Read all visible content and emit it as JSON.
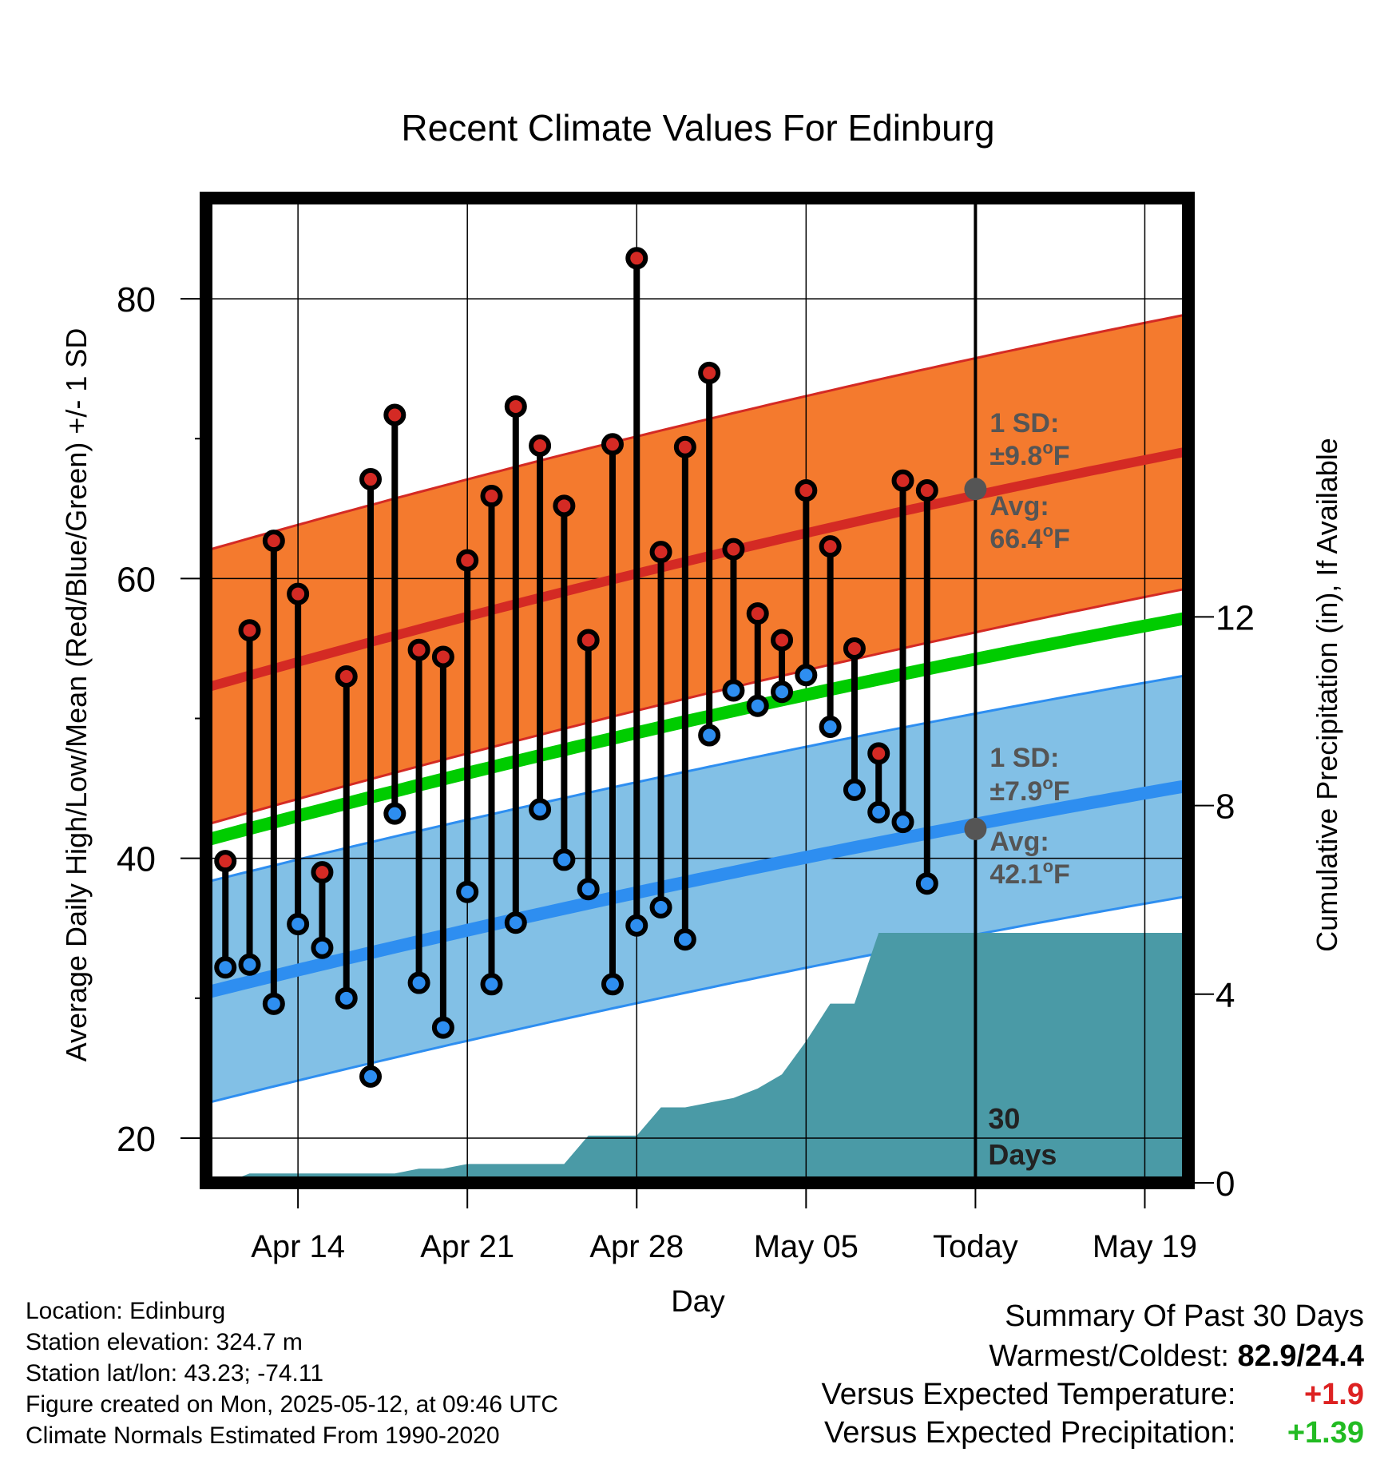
{
  "chart_data": {
    "type": "line",
    "title": "Recent Climate Values For Edinburg",
    "xlabel": "Day",
    "ylabel_left": "Average Daily High/Low/Mean (Red/Blue/Green) +/- 1 SD",
    "ylabel_right": "Cumulative Precipitation (in), If Available",
    "x_ticks": [
      "Apr 14",
      "Apr 21",
      "Apr 28",
      "May 05",
      "Today",
      "May 19"
    ],
    "x_tick_days": [
      3,
      10,
      17,
      24,
      31,
      38
    ],
    "xlim": [
      -0.8,
      39.8
    ],
    "ylim_left": [
      16.8,
      87.2
    ],
    "y_ticks_left": [
      20,
      40,
      60,
      80
    ],
    "y_minor_left": [
      30,
      50,
      70
    ],
    "ylim_right": [
      0,
      20.88
    ],
    "y_ticks_right": [
      0,
      4,
      8,
      12
    ],
    "days": [
      0,
      1,
      2,
      3,
      4,
      5,
      6,
      7,
      8,
      9,
      10,
      11,
      12,
      13,
      14,
      15,
      16,
      17,
      18,
      19,
      20,
      21,
      22,
      23,
      24,
      25,
      26,
      27,
      28,
      29,
      30
    ],
    "highs": [
      39.8,
      56.3,
      62.7,
      58.9,
      39.0,
      53.0,
      67.1,
      71.7,
      54.9,
      54.4,
      61.3,
      65.9,
      72.3,
      69.5,
      65.2,
      55.6,
      69.6,
      82.9,
      61.9,
      69.4,
      74.7,
      62.1,
      57.5,
      55.6,
      66.3,
      62.3,
      55.0,
      47.5,
      67.0,
      66.3
    ],
    "lows": [
      32.2,
      32.4,
      29.6,
      35.3,
      33.6,
      30.0,
      24.4,
      43.2,
      31.1,
      27.9,
      37.6,
      31.0,
      35.4,
      43.5,
      39.9,
      37.8,
      31.0,
      35.2,
      36.5,
      34.2,
      48.8,
      52.0,
      50.9,
      51.9,
      53.1,
      49.4,
      44.9,
      43.3,
      42.6,
      38.2
    ],
    "normal_high": {
      "start": 52.2,
      "end": 69.1,
      "today": 66.4,
      "sd": 9.8
    },
    "normal_low": {
      "start": 30.4,
      "end": 45.2,
      "today": 42.1,
      "sd": 7.9
    },
    "normal_mean": {
      "start": 41.3,
      "end": 57.2
    },
    "precip_cumulative": [
      0.0,
      0.2,
      0.2,
      0.2,
      0.2,
      0.2,
      0.2,
      0.2,
      0.3,
      0.3,
      0.4,
      0.4,
      0.4,
      0.4,
      0.4,
      1.0,
      1.0,
      1.0,
      1.6,
      1.6,
      1.7,
      1.8,
      2.0,
      2.3,
      3.0,
      3.8,
      3.8,
      5.3,
      5.3,
      5.3,
      5.3,
      5.3,
      5.3,
      5.3,
      5.3,
      5.3,
      5.3,
      5.3,
      5.3,
      5.3,
      5.3
    ],
    "today_day": 31,
    "annotations": {
      "high_sd": "1 SD:",
      "high_sd_val": "±9.8°F",
      "high_avg": "Avg:",
      "high_avg_val": "66.4°F",
      "low_sd": "1 SD:",
      "low_sd_val": "±7.9°F",
      "low_avg": "Avg:",
      "low_avg_val": "42.1°F",
      "days_num": "30",
      "days_word": "Days"
    },
    "colors": {
      "high_band": "#f47a2e",
      "high_line": "#d42a24",
      "low_band": "#82c0e6",
      "low_line": "#2e8ef0",
      "mean_line": "#00cc00",
      "precip": "#4a9aa6",
      "high_marker": "#d42a24",
      "low_marker": "#2e8ef0",
      "annotation_text": "#555555"
    }
  },
  "footer": {
    "location": "Location: Edinburg",
    "elevation": "Station elevation: 324.7 m",
    "latlon": "Station lat/lon: 43.23; -74.11",
    "created": "Figure created on Mon, 2025-05-12, at 09:46 UTC",
    "normals": "Climate Normals Estimated From 1990-2020"
  },
  "summary": {
    "title": "Summary Of Past 30 Days",
    "warm_cold_label": "Warmest/Coldest:",
    "warm_cold_value": "82.9/24.4",
    "temp_label": "Versus Expected Temperature:",
    "temp_value": "+1.9",
    "temp_color": "#dd2222",
    "precip_label": "Versus Expected Precipitation:",
    "precip_value": "+1.39",
    "precip_color": "#22bb22"
  }
}
